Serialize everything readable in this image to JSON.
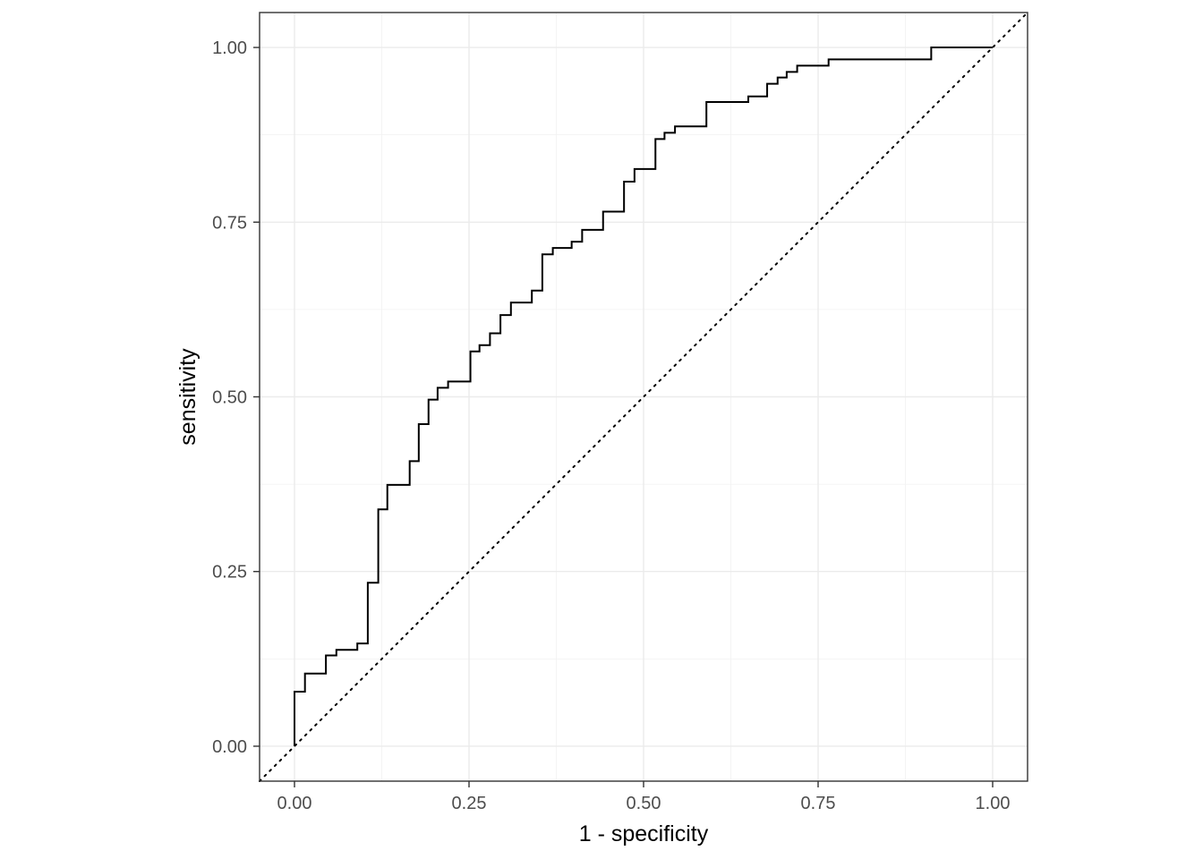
{
  "chart_data": {
    "type": "line",
    "title": "",
    "xlabel": "1 - specificity",
    "ylabel": "sensitivity",
    "xlim": [
      -0.05,
      1.05
    ],
    "ylim": [
      -0.05,
      1.05
    ],
    "x_ticks": [
      0,
      0.25,
      0.5,
      0.75,
      1
    ],
    "x_tick_labels": [
      "0.00",
      "0.25",
      "0.50",
      "0.75",
      "1.00"
    ],
    "y_ticks": [
      0,
      0.25,
      0.5,
      0.75,
      1
    ],
    "y_tick_labels": [
      "0.00",
      "0.25",
      "0.50",
      "0.75",
      "1.00"
    ],
    "grid": true,
    "reference_line": {
      "style": "dotted",
      "x": [
        -0.05,
        1.05
      ],
      "y": [
        -0.05,
        1.05
      ]
    },
    "series": [
      {
        "line_style": "step",
        "x": [
          0.0,
          0.0,
          0.015,
          0.015,
          0.045,
          0.045,
          0.06,
          0.06,
          0.09,
          0.09,
          0.105,
          0.105,
          0.12,
          0.12,
          0.133,
          0.133,
          0.165,
          0.165,
          0.178,
          0.178,
          0.192,
          0.192,
          0.205,
          0.205,
          0.22,
          0.22,
          0.252,
          0.252,
          0.265,
          0.265,
          0.28,
          0.28,
          0.295,
          0.295,
          0.31,
          0.31,
          0.34,
          0.34,
          0.355,
          0.355,
          0.37,
          0.37,
          0.397,
          0.397,
          0.412,
          0.412,
          0.442,
          0.442,
          0.472,
          0.472,
          0.487,
          0.487,
          0.517,
          0.517,
          0.53,
          0.53,
          0.545,
          0.545,
          0.59,
          0.59,
          0.65,
          0.65,
          0.677,
          0.677,
          0.692,
          0.692,
          0.705,
          0.705,
          0.72,
          0.72,
          0.765,
          0.765,
          0.912,
          0.912,
          1.0
        ],
        "y": [
          0.0,
          0.078,
          0.078,
          0.104,
          0.104,
          0.13,
          0.13,
          0.138,
          0.138,
          0.147,
          0.147,
          0.234,
          0.234,
          0.339,
          0.339,
          0.374,
          0.374,
          0.408,
          0.408,
          0.461,
          0.461,
          0.496,
          0.496,
          0.513,
          0.513,
          0.522,
          0.522,
          0.565,
          0.565,
          0.574,
          0.574,
          0.591,
          0.591,
          0.617,
          0.617,
          0.635,
          0.635,
          0.652,
          0.652,
          0.704,
          0.704,
          0.713,
          0.713,
          0.722,
          0.722,
          0.739,
          0.739,
          0.765,
          0.765,
          0.808,
          0.808,
          0.826,
          0.826,
          0.869,
          0.869,
          0.878,
          0.878,
          0.887,
          0.887,
          0.922,
          0.922,
          0.93,
          0.93,
          0.948,
          0.948,
          0.957,
          0.957,
          0.965,
          0.965,
          0.974,
          0.974,
          0.983,
          0.983,
          1.0,
          1.0
        ]
      }
    ]
  }
}
